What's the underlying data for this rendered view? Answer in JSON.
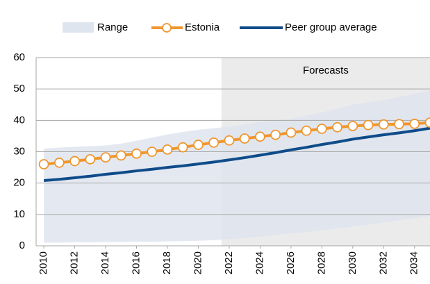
{
  "chart_data": {
    "type": "line",
    "x": [
      2010,
      2011,
      2012,
      2013,
      2014,
      2015,
      2016,
      2017,
      2018,
      2019,
      2020,
      2021,
      2022,
      2023,
      2024,
      2025,
      2026,
      2027,
      2028,
      2029,
      2030,
      2031,
      2032,
      2033,
      2034,
      2035
    ],
    "series": [
      {
        "name": "Range",
        "color": "#dfe5ee",
        "low": [
          1.0,
          1.0,
          1.1,
          1.1,
          1.2,
          1.2,
          1.3,
          1.3,
          1.4,
          1.5,
          1.6,
          1.8,
          2.1,
          2.5,
          2.9,
          3.4,
          3.9,
          4.4,
          4.9,
          5.5,
          6.1,
          6.7,
          7.4,
          8.1,
          8.8,
          9.5
        ],
        "high": [
          31,
          31.3,
          31.6,
          31.8,
          32,
          32.6,
          33.5,
          34.5,
          35.5,
          36.3,
          37,
          37.5,
          38,
          38.7,
          39.5,
          40,
          40.5,
          41.5,
          42.5,
          43.8,
          45,
          45.8,
          46.5,
          47.5,
          48.5,
          49.5
        ]
      },
      {
        "name": "Estonia",
        "color": "#f0962e",
        "values": [
          26,
          26.5,
          27,
          27.6,
          28.2,
          28.8,
          29.4,
          30,
          30.7,
          31.4,
          32.2,
          32.9,
          33.6,
          34.2,
          34.8,
          35.4,
          36.1,
          36.7,
          37.3,
          37.8,
          38.2,
          38.5,
          38.7,
          38.8,
          38.9,
          39.3
        ]
      },
      {
        "name": "Peer group average",
        "color": "#0f4c8a",
        "values": [
          20.8,
          21.2,
          21.7,
          22.2,
          22.8,
          23.3,
          23.9,
          24.4,
          25.0,
          25.5,
          26.1,
          26.7,
          27.4,
          28.1,
          28.9,
          29.7,
          30.6,
          31.4,
          32.3,
          33.1,
          34.0,
          34.7,
          35.4,
          36.0,
          36.7,
          37.5
        ]
      }
    ],
    "forecast": {
      "label": "Forecasts",
      "start": 2021.5,
      "color": "#ebebeb"
    },
    "xlim": [
      2009.5,
      2035
    ],
    "xticks": [
      2010,
      2012,
      2014,
      2016,
      2018,
      2020,
      2022,
      2024,
      2026,
      2028,
      2030,
      2032,
      2034
    ],
    "ylim": [
      0,
      60
    ],
    "yticks": [
      0,
      10,
      20,
      30,
      40,
      50,
      60
    ],
    "grid": true
  }
}
